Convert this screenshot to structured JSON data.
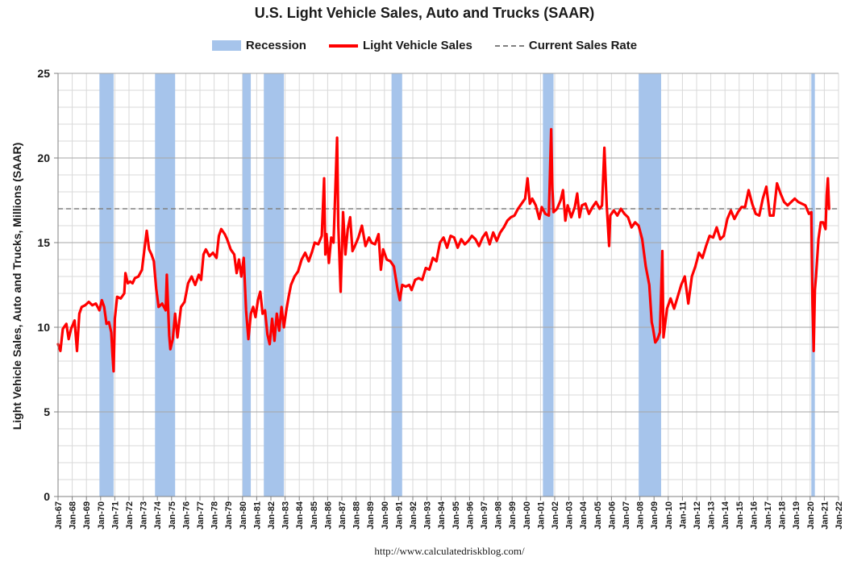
{
  "chart_data": {
    "type": "line",
    "title": "U.S. Light Vehicle Sales, Auto and Trucks (SAAR)",
    "ylabel": "Light Vehicle Sales, Auto and Trucks, Millions (SAAR)",
    "xlabel": "",
    "source": "http://www.calculatedriskblog.com/",
    "x_range": [
      "1967-01",
      "2022-01"
    ],
    "ylim": [
      0,
      25
    ],
    "y_ticks": [
      0,
      5,
      10,
      15,
      20,
      25
    ],
    "x_tick_labels": [
      "Jan-67",
      "Jan-68",
      "Jan-69",
      "Jan-70",
      "Jan-71",
      "Jan-72",
      "Jan-73",
      "Jan-74",
      "Jan-75",
      "Jan-76",
      "Jan-77",
      "Jan-78",
      "Jan-79",
      "Jan-80",
      "Jan-81",
      "Jan-82",
      "Jan-83",
      "Jan-84",
      "Jan-85",
      "Jan-86",
      "Jan-87",
      "Jan-88",
      "Jan-89",
      "Jan-90",
      "Jan-91",
      "Jan-92",
      "Jan-93",
      "Jan-94",
      "Jan-95",
      "Jan-96",
      "Jan-97",
      "Jan-98",
      "Jan-99",
      "Jan-00",
      "Jan-01",
      "Jan-02",
      "Jan-03",
      "Jan-04",
      "Jan-05",
      "Jan-06",
      "Jan-07",
      "Jan-08",
      "Jan-09",
      "Jan-10",
      "Jan-11",
      "Jan-12",
      "Jan-13",
      "Jan-14",
      "Jan-15",
      "Jan-16",
      "Jan-17",
      "Jan-18",
      "Jan-19",
      "Jan-20",
      "Jan-21",
      "Jan-22"
    ],
    "grid": true,
    "legend": {
      "placement": "top",
      "recession_label": "Recession",
      "sales_label": "Light Vehicle Sales",
      "rate_label": "Current Sales Rate"
    },
    "colors": {
      "recession": "#a6c4eb",
      "sales": "#ff0000",
      "rate": "#808080",
      "grid": "#d9d9d9",
      "major_grid": "#a6a6a6"
    },
    "recessions": [
      [
        "1969-12",
        "1970-11"
      ],
      [
        "1973-11",
        "1975-03"
      ],
      [
        "1980-01",
        "1980-07"
      ],
      [
        "1981-07",
        "1982-11"
      ],
      [
        "1990-07",
        "1991-03"
      ],
      [
        "2001-03",
        "2001-11"
      ],
      [
        "2007-12",
        "2009-06"
      ],
      [
        "2020-02",
        "2020-04"
      ]
    ],
    "current_rate": 17.0,
    "series": [
      {
        "name": "Light Vehicle Sales",
        "points": [
          [
            "1967-01",
            9.0
          ],
          [
            "1967-03",
            8.6
          ],
          [
            "1967-05",
            9.9
          ],
          [
            "1967-08",
            10.2
          ],
          [
            "1967-10",
            9.3
          ],
          [
            "1967-12",
            9.9
          ],
          [
            "1968-03",
            10.4
          ],
          [
            "1968-05",
            8.6
          ],
          [
            "1968-07",
            10.8
          ],
          [
            "1968-09",
            11.2
          ],
          [
            "1968-12",
            11.3
          ],
          [
            "1969-03",
            11.5
          ],
          [
            "1969-06",
            11.3
          ],
          [
            "1969-09",
            11.4
          ],
          [
            "1969-12",
            11.0
          ],
          [
            "1970-02",
            11.6
          ],
          [
            "1970-04",
            11.2
          ],
          [
            "1970-06",
            10.2
          ],
          [
            "1970-08",
            10.3
          ],
          [
            "1970-10",
            9.7
          ],
          [
            "1970-11",
            8.4
          ],
          [
            "1970-12",
            7.4
          ],
          [
            "1971-01",
            10.5
          ],
          [
            "1971-03",
            11.8
          ],
          [
            "1971-06",
            11.7
          ],
          [
            "1971-09",
            12.0
          ],
          [
            "1971-10",
            13.2
          ],
          [
            "1971-12",
            12.6
          ],
          [
            "1972-02",
            12.7
          ],
          [
            "1972-04",
            12.6
          ],
          [
            "1972-06",
            12.9
          ],
          [
            "1972-09",
            13.0
          ],
          [
            "1972-12",
            13.4
          ],
          [
            "1973-02",
            14.6
          ],
          [
            "1973-04",
            15.7
          ],
          [
            "1973-06",
            14.6
          ],
          [
            "1973-08",
            14.3
          ],
          [
            "1973-10",
            13.9
          ],
          [
            "1973-12",
            12.3
          ],
          [
            "1974-02",
            11.2
          ],
          [
            "1974-05",
            11.4
          ],
          [
            "1974-08",
            11.0
          ],
          [
            "1974-09",
            13.1
          ],
          [
            "1974-11",
            9.5
          ],
          [
            "1974-12",
            8.7
          ],
          [
            "1975-02",
            9.3
          ],
          [
            "1975-04",
            10.8
          ],
          [
            "1975-06",
            9.4
          ],
          [
            "1975-09",
            11.2
          ],
          [
            "1975-12",
            11.5
          ],
          [
            "1976-03",
            12.6
          ],
          [
            "1976-06",
            13.0
          ],
          [
            "1976-09",
            12.5
          ],
          [
            "1976-12",
            13.1
          ],
          [
            "1977-02",
            12.8
          ],
          [
            "1977-04",
            14.3
          ],
          [
            "1977-06",
            14.6
          ],
          [
            "1977-09",
            14.2
          ],
          [
            "1977-12",
            14.4
          ],
          [
            "1978-03",
            14.1
          ],
          [
            "1978-05",
            15.4
          ],
          [
            "1978-07",
            15.8
          ],
          [
            "1978-10",
            15.5
          ],
          [
            "1978-12",
            15.2
          ],
          [
            "1979-03",
            14.6
          ],
          [
            "1979-06",
            14.3
          ],
          [
            "1979-08",
            13.2
          ],
          [
            "1979-10",
            14.0
          ],
          [
            "1979-12",
            13.0
          ],
          [
            "1980-02",
            14.1
          ],
          [
            "1980-04",
            11.0
          ],
          [
            "1980-06",
            9.3
          ],
          [
            "1980-08",
            10.8
          ],
          [
            "1980-10",
            11.2
          ],
          [
            "1980-12",
            10.6
          ],
          [
            "1981-02",
            11.6
          ],
          [
            "1981-04",
            12.1
          ],
          [
            "1981-06",
            10.8
          ],
          [
            "1981-08",
            11.0
          ],
          [
            "1981-10",
            9.6
          ],
          [
            "1981-12",
            9.0
          ],
          [
            "1982-02",
            10.5
          ],
          [
            "1982-04",
            9.2
          ],
          [
            "1982-06",
            10.8
          ],
          [
            "1982-08",
            9.8
          ],
          [
            "1982-10",
            11.2
          ],
          [
            "1982-12",
            10.0
          ],
          [
            "1983-02",
            11.0
          ],
          [
            "1983-04",
            11.8
          ],
          [
            "1983-06",
            12.5
          ],
          [
            "1983-09",
            13.0
          ],
          [
            "1983-12",
            13.3
          ],
          [
            "1984-03",
            14.0
          ],
          [
            "1984-06",
            14.4
          ],
          [
            "1984-09",
            13.9
          ],
          [
            "1984-12",
            14.5
          ],
          [
            "1985-02",
            15.0
          ],
          [
            "1985-05",
            14.9
          ],
          [
            "1985-08",
            15.4
          ],
          [
            "1985-10",
            18.8
          ],
          [
            "1985-11",
            14.3
          ],
          [
            "1985-12",
            15.5
          ],
          [
            "1986-02",
            13.8
          ],
          [
            "1986-04",
            15.3
          ],
          [
            "1986-06",
            15.0
          ],
          [
            "1986-09",
            21.2
          ],
          [
            "1986-10",
            16.0
          ],
          [
            "1986-12",
            12.1
          ],
          [
            "1987-02",
            16.8
          ],
          [
            "1987-04",
            14.3
          ],
          [
            "1987-06",
            15.8
          ],
          [
            "1987-08",
            16.5
          ],
          [
            "1987-10",
            14.5
          ],
          [
            "1987-12",
            14.8
          ],
          [
            "1988-03",
            15.3
          ],
          [
            "1988-06",
            16.0
          ],
          [
            "1988-09",
            14.8
          ],
          [
            "1988-12",
            15.3
          ],
          [
            "1989-02",
            15.0
          ],
          [
            "1989-05",
            14.9
          ],
          [
            "1989-08",
            15.5
          ],
          [
            "1989-10",
            13.4
          ],
          [
            "1989-12",
            14.6
          ],
          [
            "1990-03",
            14.0
          ],
          [
            "1990-06",
            13.9
          ],
          [
            "1990-09",
            13.6
          ],
          [
            "1990-12",
            12.3
          ],
          [
            "1991-02",
            11.6
          ],
          [
            "1991-04",
            12.5
          ],
          [
            "1991-07",
            12.4
          ],
          [
            "1991-10",
            12.5
          ],
          [
            "1991-12",
            12.2
          ],
          [
            "1992-03",
            12.8
          ],
          [
            "1992-06",
            12.9
          ],
          [
            "1992-09",
            12.8
          ],
          [
            "1992-12",
            13.5
          ],
          [
            "1993-03",
            13.4
          ],
          [
            "1993-06",
            14.1
          ],
          [
            "1993-09",
            13.9
          ],
          [
            "1993-12",
            15.0
          ],
          [
            "1994-03",
            15.3
          ],
          [
            "1994-06",
            14.7
          ],
          [
            "1994-09",
            15.4
          ],
          [
            "1994-12",
            15.3
          ],
          [
            "1995-03",
            14.7
          ],
          [
            "1995-06",
            15.2
          ],
          [
            "1995-09",
            14.9
          ],
          [
            "1995-12",
            15.1
          ],
          [
            "1996-03",
            15.4
          ],
          [
            "1996-06",
            15.2
          ],
          [
            "1996-09",
            14.8
          ],
          [
            "1996-12",
            15.3
          ],
          [
            "1997-03",
            15.6
          ],
          [
            "1997-06",
            14.9
          ],
          [
            "1997-09",
            15.6
          ],
          [
            "1997-12",
            15.1
          ],
          [
            "1998-03",
            15.6
          ],
          [
            "1998-06",
            15.9
          ],
          [
            "1998-09",
            16.3
          ],
          [
            "1998-12",
            16.5
          ],
          [
            "1999-03",
            16.6
          ],
          [
            "1999-06",
            17.0
          ],
          [
            "1999-09",
            17.3
          ],
          [
            "1999-12",
            17.6
          ],
          [
            "2000-02",
            18.8
          ],
          [
            "2000-04",
            17.3
          ],
          [
            "2000-06",
            17.6
          ],
          [
            "2000-09",
            17.2
          ],
          [
            "2000-12",
            16.4
          ],
          [
            "2001-02",
            17.1
          ],
          [
            "2001-05",
            16.7
          ],
          [
            "2001-08",
            16.6
          ],
          [
            "2001-10",
            21.7
          ],
          [
            "2001-11",
            18.2
          ],
          [
            "2001-12",
            16.8
          ],
          [
            "2002-03",
            17.0
          ],
          [
            "2002-06",
            17.5
          ],
          [
            "2002-08",
            18.1
          ],
          [
            "2002-10",
            16.3
          ],
          [
            "2002-12",
            17.2
          ],
          [
            "2003-03",
            16.5
          ],
          [
            "2003-06",
            17.1
          ],
          [
            "2003-08",
            17.9
          ],
          [
            "2003-10",
            16.5
          ],
          [
            "2003-12",
            17.2
          ],
          [
            "2004-03",
            17.3
          ],
          [
            "2004-06",
            16.7
          ],
          [
            "2004-09",
            17.1
          ],
          [
            "2004-12",
            17.4
          ],
          [
            "2005-03",
            17.0
          ],
          [
            "2005-05",
            17.2
          ],
          [
            "2005-07",
            20.6
          ],
          [
            "2005-09",
            17.2
          ],
          [
            "2005-11",
            14.8
          ],
          [
            "2005-12",
            16.6
          ],
          [
            "2006-03",
            16.9
          ],
          [
            "2006-06",
            16.6
          ],
          [
            "2006-09",
            17.0
          ],
          [
            "2006-12",
            16.7
          ],
          [
            "2007-03",
            16.5
          ],
          [
            "2007-06",
            15.9
          ],
          [
            "2007-09",
            16.2
          ],
          [
            "2007-12",
            16.0
          ],
          [
            "2008-03",
            15.2
          ],
          [
            "2008-06",
            13.6
          ],
          [
            "2008-09",
            12.5
          ],
          [
            "2008-11",
            10.3
          ],
          [
            "2008-12",
            10.0
          ],
          [
            "2009-02",
            9.1
          ],
          [
            "2009-04",
            9.3
          ],
          [
            "2009-06",
            9.7
          ],
          [
            "2009-08",
            14.5
          ],
          [
            "2009-09",
            9.4
          ],
          [
            "2009-12",
            11.1
          ],
          [
            "2010-03",
            11.7
          ],
          [
            "2010-06",
            11.1
          ],
          [
            "2010-09",
            11.8
          ],
          [
            "2010-12",
            12.5
          ],
          [
            "2011-03",
            13.0
          ],
          [
            "2011-06",
            11.4
          ],
          [
            "2011-09",
            13.0
          ],
          [
            "2011-12",
            13.6
          ],
          [
            "2012-03",
            14.4
          ],
          [
            "2012-06",
            14.1
          ],
          [
            "2012-09",
            14.8
          ],
          [
            "2012-12",
            15.4
          ],
          [
            "2013-03",
            15.3
          ],
          [
            "2013-06",
            15.9
          ],
          [
            "2013-09",
            15.2
          ],
          [
            "2013-12",
            15.4
          ],
          [
            "2014-03",
            16.4
          ],
          [
            "2014-06",
            16.9
          ],
          [
            "2014-09",
            16.4
          ],
          [
            "2014-12",
            16.8
          ],
          [
            "2015-03",
            17.1
          ],
          [
            "2015-06",
            17.1
          ],
          [
            "2015-09",
            18.1
          ],
          [
            "2015-12",
            17.3
          ],
          [
            "2016-03",
            16.7
          ],
          [
            "2016-06",
            16.6
          ],
          [
            "2016-09",
            17.6
          ],
          [
            "2016-12",
            18.3
          ],
          [
            "2017-03",
            16.6
          ],
          [
            "2017-06",
            16.6
          ],
          [
            "2017-09",
            18.5
          ],
          [
            "2017-12",
            17.9
          ],
          [
            "2018-03",
            17.4
          ],
          [
            "2018-06",
            17.2
          ],
          [
            "2018-09",
            17.4
          ],
          [
            "2018-12",
            17.6
          ],
          [
            "2019-03",
            17.4
          ],
          [
            "2019-06",
            17.3
          ],
          [
            "2019-09",
            17.2
          ],
          [
            "2019-12",
            16.7
          ],
          [
            "2020-02",
            16.8
          ],
          [
            "2020-03",
            11.4
          ],
          [
            "2020-04",
            8.6
          ],
          [
            "2020-05",
            12.2
          ],
          [
            "2020-06",
            13.0
          ],
          [
            "2020-08",
            15.2
          ],
          [
            "2020-10",
            16.2
          ],
          [
            "2020-12",
            16.2
          ],
          [
            "2021-02",
            15.8
          ],
          [
            "2021-03",
            17.8
          ],
          [
            "2021-04",
            18.8
          ],
          [
            "2021-05",
            17.0
          ]
        ]
      }
    ]
  }
}
